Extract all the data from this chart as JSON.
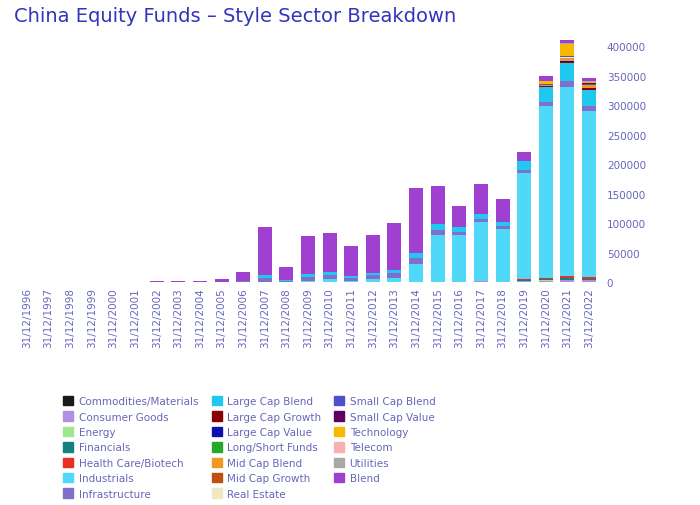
{
  "title": "China Equity Funds – Style Sector Breakdown",
  "years": [
    "31/12/1996",
    "31/12/1997",
    "31/12/1998",
    "31/12/1999",
    "31/12/2000",
    "31/12/2001",
    "31/12/2002",
    "31/12/2003",
    "31/12/2004",
    "31/12/2005",
    "31/12/2006",
    "31/12/2007",
    "31/12/2008",
    "31/12/2009",
    "31/12/2010",
    "31/12/2011",
    "31/12/2012",
    "31/12/2013",
    "31/12/2014",
    "31/12/2015",
    "31/12/2016",
    "31/12/2017",
    "31/12/2018",
    "31/12/2019",
    "31/12/2020",
    "31/12/2021",
    "31/12/2022"
  ],
  "categories": [
    "Commodities/Materials",
    "Consumer Goods",
    "Energy",
    "Financials",
    "Health Care/Biotech",
    "Industrials",
    "Infrastructure",
    "Large Cap Blend",
    "Large Cap Growth",
    "Large Cap Value",
    "Long/Short Funds",
    "Mid Cap Blend",
    "Mid Cap Growth",
    "Real Estate",
    "Small Cap Blend",
    "Small Cap Value",
    "Technology",
    "Telecom",
    "Utilities",
    "Blend"
  ],
  "colors": {
    "Commodities/Materials": "#1a1a1a",
    "Consumer Goods": "#b090e0",
    "Energy": "#a0e890",
    "Financials": "#148080",
    "Health Care/Biotech": "#e83020",
    "Industrials": "#50d8f8",
    "Infrastructure": "#8070cc",
    "Large Cap Blend": "#20c8f0",
    "Large Cap Growth": "#8b0000",
    "Large Cap Value": "#1010b0",
    "Long/Short Funds": "#28a828",
    "Mid Cap Blend": "#f09820",
    "Mid Cap Growth": "#c05010",
    "Real Estate": "#f0e8c0",
    "Small Cap Blend": "#5050cc",
    "Small Cap Value": "#600060",
    "Technology": "#f8b800",
    "Telecom": "#f8b0b0",
    "Utilities": "#a8a8a8",
    "Blend": "#a040d0"
  },
  "data": {
    "Commodities/Materials": [
      0,
      0,
      0,
      0,
      0,
      0,
      0,
      0,
      0,
      0,
      0,
      0,
      0,
      0,
      0,
      0,
      0,
      0,
      0,
      0,
      0,
      0,
      0,
      0,
      0,
      0,
      0
    ],
    "Consumer Goods": [
      0,
      0,
      0,
      0,
      0,
      0,
      0,
      0,
      0,
      0,
      0,
      0,
      0,
      0,
      0,
      0,
      0,
      0,
      1000,
      1000,
      1000,
      1500,
      1000,
      2000,
      3000,
      4000,
      3500
    ],
    "Energy": [
      0,
      0,
      0,
      0,
      0,
      0,
      0,
      0,
      0,
      0,
      0,
      0,
      0,
      0,
      0,
      0,
      0,
      0,
      0,
      0,
      0,
      0,
      0,
      0,
      500,
      600,
      500
    ],
    "Financials": [
      0,
      0,
      0,
      0,
      0,
      0,
      0,
      0,
      0,
      0,
      0,
      0,
      0,
      0,
      0,
      0,
      0,
      0,
      0,
      0,
      0,
      0,
      0,
      1500,
      2000,
      2500,
      2000
    ],
    "Health Care/Biotech": [
      0,
      0,
      0,
      0,
      0,
      0,
      0,
      0,
      0,
      0,
      0,
      0,
      0,
      0,
      0,
      0,
      0,
      0,
      0,
      0,
      0,
      0,
      0,
      1500,
      2500,
      4000,
      3500
    ],
    "Industrials": [
      0,
      0,
      0,
      0,
      0,
      0,
      0,
      0,
      0,
      0,
      0,
      0,
      0,
      2000,
      5000,
      3000,
      5000,
      8000,
      30000,
      80000,
      80000,
      100000,
      90000,
      180000,
      290000,
      320000,
      280000
    ],
    "Infrastructure": [
      0,
      0,
      0,
      0,
      0,
      0,
      0,
      0,
      0,
      0,
      2000,
      8000,
      2500,
      7000,
      8000,
      5000,
      7000,
      8000,
      10000,
      8000,
      5000,
      5000,
      4000,
      6000,
      8000,
      10000,
      9000
    ],
    "Large Cap Blend": [
      0,
      0,
      0,
      0,
      0,
      0,
      0,
      0,
      0,
      0,
      0,
      5000,
      2000,
      5000,
      5000,
      3000,
      4000,
      5000,
      8000,
      10000,
      8000,
      10000,
      8000,
      15000,
      25000,
      30000,
      28000
    ],
    "Large Cap Growth": [
      0,
      0,
      0,
      0,
      0,
      0,
      0,
      0,
      0,
      0,
      0,
      0,
      0,
      0,
      0,
      0,
      0,
      0,
      0,
      0,
      0,
      0,
      0,
      0,
      1000,
      2500,
      2000
    ],
    "Large Cap Value": [
      0,
      0,
      0,
      0,
      0,
      0,
      0,
      0,
      0,
      0,
      0,
      0,
      0,
      0,
      0,
      0,
      0,
      0,
      0,
      0,
      0,
      0,
      0,
      0,
      500,
      1000,
      800
    ],
    "Long/Short Funds": [
      0,
      0,
      0,
      0,
      0,
      0,
      0,
      0,
      0,
      0,
      0,
      0,
      0,
      0,
      0,
      0,
      0,
      0,
      0,
      0,
      0,
      0,
      0,
      0,
      0,
      500,
      400
    ],
    "Mid Cap Blend": [
      0,
      0,
      0,
      0,
      0,
      0,
      0,
      0,
      0,
      0,
      0,
      0,
      0,
      0,
      0,
      0,
      0,
      0,
      0,
      0,
      0,
      0,
      0,
      0,
      2000,
      5000,
      4000
    ],
    "Mid Cap Growth": [
      0,
      0,
      0,
      0,
      0,
      0,
      0,
      0,
      0,
      0,
      0,
      0,
      0,
      0,
      0,
      0,
      0,
      0,
      0,
      0,
      0,
      0,
      0,
      0,
      0,
      500,
      400
    ],
    "Real Estate": [
      0,
      0,
      0,
      0,
      0,
      0,
      0,
      0,
      0,
      0,
      0,
      0,
      0,
      0,
      0,
      0,
      0,
      0,
      0,
      0,
      0,
      0,
      0,
      0,
      0,
      500,
      400
    ],
    "Small Cap Blend": [
      0,
      0,
      0,
      0,
      0,
      0,
      0,
      0,
      0,
      0,
      0,
      0,
      0,
      0,
      0,
      0,
      0,
      0,
      0,
      0,
      0,
      0,
      0,
      0,
      1500,
      2500,
      2000
    ],
    "Small Cap Value": [
      0,
      0,
      0,
      0,
      0,
      0,
      0,
      0,
      0,
      0,
      0,
      0,
      0,
      0,
      0,
      0,
      0,
      0,
      0,
      0,
      0,
      0,
      0,
      0,
      0,
      500,
      400
    ],
    "Technology": [
      0,
      0,
      0,
      0,
      0,
      0,
      0,
      0,
      0,
      0,
      0,
      0,
      0,
      0,
      0,
      0,
      0,
      0,
      0,
      0,
      0,
      0,
      0,
      0,
      5000,
      20000,
      3000
    ],
    "Telecom": [
      0,
      0,
      0,
      0,
      0,
      0,
      0,
      0,
      0,
      0,
      0,
      0,
      0,
      0,
      0,
      0,
      0,
      0,
      0,
      0,
      0,
      0,
      0,
      0,
      0,
      300,
      250
    ],
    "Utilities": [
      0,
      0,
      0,
      0,
      0,
      0,
      0,
      0,
      0,
      0,
      0,
      0,
      0,
      0,
      0,
      0,
      0,
      0,
      0,
      0,
      0,
      0,
      0,
      0,
      0,
      500,
      400
    ],
    "Blend": [
      500,
      600,
      700,
      800,
      1000,
      1200,
      1500,
      2000,
      3000,
      5000,
      15000,
      80000,
      22000,
      65000,
      65000,
      50000,
      65000,
      80000,
      110000,
      65000,
      35000,
      50000,
      38000,
      15000,
      8000,
      6000,
      5000
    ]
  },
  "ylim": [
    0,
    420000
  ],
  "yticks": [
    0,
    50000,
    100000,
    150000,
    200000,
    250000,
    300000,
    350000,
    400000
  ],
  "background_color": "#ffffff",
  "title_color": "#3333bb",
  "axis_color": "#6666bb",
  "legend_text_color": "#6666bb",
  "title_fontsize": 14,
  "tick_fontsize": 7.5
}
